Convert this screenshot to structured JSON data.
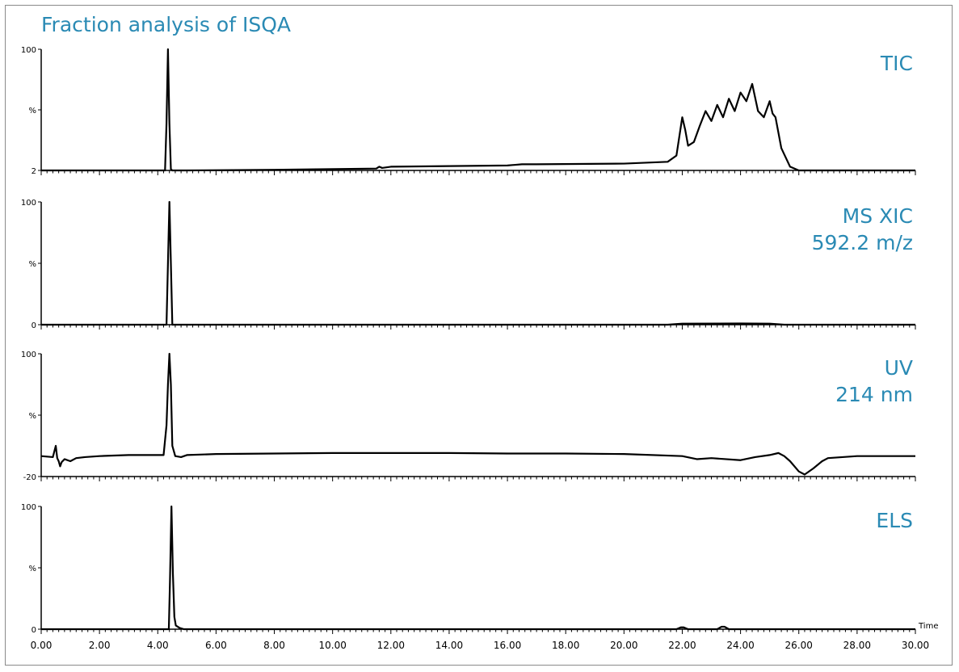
{
  "title": "Fraction analysis of ISQA",
  "accent_color": "#2a8ab4",
  "chart_data": [
    {
      "type": "line",
      "label": [
        "TIC"
      ],
      "ylim": [
        2,
        100
      ],
      "ytick_labels": [
        "100",
        "%",
        "2"
      ],
      "xlim": [
        0,
        30
      ],
      "series": [
        {
          "x": [
            0,
            4.25,
            4.3,
            4.35,
            4.4,
            4.45,
            4.5,
            5,
            8,
            11.5,
            11.6,
            11.7,
            12,
            16,
            16.5,
            17,
            20,
            21.5,
            21.8,
            22,
            22.1,
            22.2,
            22.4,
            22.6,
            22.8,
            23.0,
            23.2,
            23.4,
            23.6,
            23.8,
            24.0,
            24.2,
            24.4,
            24.6,
            24.8,
            25.0,
            25.1,
            25.2,
            25.4,
            25.7,
            26.0,
            30
          ],
          "y": [
            2,
            2,
            40,
            100,
            40,
            3,
            2,
            2,
            2.5,
            3.5,
            5,
            4,
            5,
            6,
            7,
            7,
            7.5,
            9,
            14,
            45,
            35,
            22,
            25,
            38,
            50,
            42,
            55,
            45,
            60,
            50,
            65,
            58,
            72,
            50,
            45,
            58,
            48,
            45,
            20,
            5,
            2,
            2
          ]
        }
      ]
    },
    {
      "type": "line",
      "label": [
        "MS XIC",
        "592.2 m/z"
      ],
      "ylim": [
        0,
        100
      ],
      "ytick_labels": [
        "100",
        "%",
        "0"
      ],
      "xlim": [
        0,
        30
      ],
      "series": [
        {
          "x": [
            0,
            4.3,
            4.35,
            4.4,
            4.45,
            4.5,
            21.5,
            22,
            24,
            25,
            25.5,
            30
          ],
          "y": [
            0,
            0,
            50,
            100,
            50,
            0,
            0,
            0.8,
            1.0,
            0.8,
            0,
            0
          ]
        }
      ]
    },
    {
      "type": "line",
      "label": [
        "UV",
        "214 nm"
      ],
      "ylim": [
        -20,
        100
      ],
      "ytick_labels": [
        "100",
        "%",
        "-20"
      ],
      "xlim": [
        0,
        30
      ],
      "series": [
        {
          "x": [
            0,
            0.4,
            0.5,
            0.55,
            0.6,
            0.65,
            0.7,
            0.8,
            1.0,
            1.2,
            1.5,
            2,
            3,
            4.2,
            4.3,
            4.35,
            4.4,
            4.45,
            4.5,
            4.6,
            4.8,
            5,
            6,
            8,
            10,
            12,
            14,
            16,
            18,
            20,
            22,
            22.5,
            23,
            24,
            24.5,
            25,
            25.3,
            25.5,
            25.7,
            26.0,
            26.2,
            26.5,
            26.8,
            27.0,
            28,
            30
          ],
          "y": [
            0,
            -1,
            10,
            -2,
            -5,
            -10,
            -6,
            -3,
            -5,
            -2,
            -1,
            0,
            1,
            1,
            30,
            70,
            100,
            70,
            10,
            0,
            -1,
            1,
            2,
            2.5,
            3,
            3,
            3,
            2.5,
            2.5,
            2,
            0,
            -3,
            -2,
            -4,
            -1,
            1,
            3,
            0,
            -5,
            -15,
            -18,
            -12,
            -5,
            -2,
            0,
            0
          ]
        }
      ]
    },
    {
      "type": "line",
      "label": [
        "ELS"
      ],
      "ylim": [
        0,
        100
      ],
      "ytick_labels": [
        "100",
        "%",
        "0"
      ],
      "xlim": [
        0,
        30
      ],
      "series": [
        {
          "x": [
            0,
            4.38,
            4.42,
            4.47,
            4.52,
            4.57,
            4.62,
            4.75,
            4.9,
            21.8,
            21.95,
            22.05,
            22.2,
            23.2,
            23.35,
            23.45,
            23.6,
            30
          ],
          "y": [
            0,
            0,
            40,
            100,
            45,
            10,
            3,
            1,
            0,
            0,
            1.5,
            1.5,
            0,
            0,
            2,
            2,
            0,
            0
          ]
        }
      ]
    }
  ],
  "x_axis": {
    "label": "Time",
    "ticks": [
      "0.00",
      "2.00",
      "4.00",
      "6.00",
      "8.00",
      "10.00",
      "12.00",
      "14.00",
      "16.00",
      "18.00",
      "20.00",
      "22.00",
      "24.00",
      "26.00",
      "28.00",
      "30.00"
    ]
  }
}
